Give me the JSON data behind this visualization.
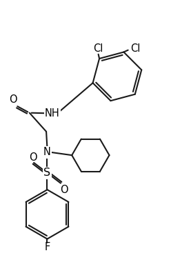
{
  "background": "#ffffff",
  "line_color": "#1a1a1a",
  "lw": 1.5,
  "label_fontsize": 10.5,
  "figsize": [
    2.77,
    3.96
  ],
  "dpi": 100,
  "xlim": [
    0,
    9.5
  ],
  "ylim": [
    0,
    13.5
  ]
}
